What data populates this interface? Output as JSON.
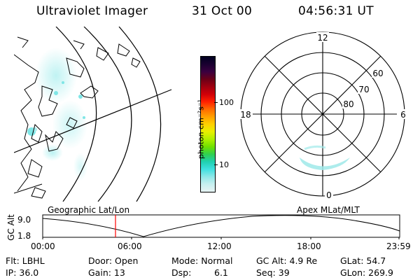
{
  "header": {
    "instrument": "Ultraviolet Imager",
    "date": "31 Oct 00",
    "time": "04:56:31 UT"
  },
  "colorbar": {
    "unit_label": "photon cm⁻²s⁻¹",
    "ticks": [
      "100",
      "10"
    ],
    "colors": [
      "#000020",
      "#1a0030",
      "#3a0040",
      "#6a0018",
      "#a00010",
      "#d00008",
      "#ff2000",
      "#ff6a00",
      "#ffa000",
      "#ffd000",
      "#e8f000",
      "#b0f000",
      "#70e000",
      "#30d050",
      "#20d0b0",
      "#40e0e0",
      "#90e8e8",
      "#c8f0f0",
      "#e8f4f4"
    ]
  },
  "polar": {
    "mlt_labels": {
      "top": "12",
      "right": "6",
      "bottom": "0",
      "left": "18"
    },
    "mlat_labels": [
      "60",
      "70",
      "80"
    ]
  },
  "timeline": {
    "left_label": "Geographic Lat/Lon",
    "right_label": "Apex MLat/MLT",
    "axis_title": "GC Alt",
    "y_ticks": [
      "9.0",
      "1.8"
    ],
    "x_ticks": [
      "00:00",
      "06:00",
      "12:00",
      "18:00",
      "23:59"
    ]
  },
  "info": {
    "flt": "Flt: LBHL",
    "ip": "IP: 36.0",
    "door": "Door: Open",
    "gain": "Gain: 13",
    "mode": "Mode: Normal",
    "dsp_label": "Dsp:",
    "dsp_value": "6.1",
    "gcalt": "GC Alt: 4.9 Re",
    "seq": "Seq: 39",
    "glat": "GLat:  54.7",
    "glon": "GLon: 269.9"
  },
  "colors": {
    "aurora": "#7fe6e6",
    "marker": "#ff0000"
  }
}
